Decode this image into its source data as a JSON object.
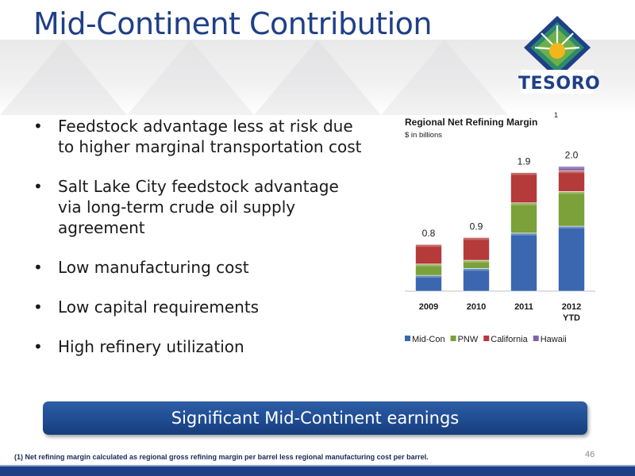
{
  "slide": {
    "title": "Mid-Continent Contribution",
    "logo_text": "TESORO",
    "page_number": "46",
    "banner": "Significant Mid-Continent earnings",
    "footnote": "(1) Net refining margin calculated as regional gross refining margin per barrel less regional manufacturing cost per barrel."
  },
  "bullets": [
    {
      "marker": "•",
      "text": "Feedstock advantage less at risk due to higher marginal transportation cost"
    },
    {
      "marker": "•",
      "text": "Salt Lake City feedstock advantage via long-term crude oil supply agreement"
    },
    {
      "marker": "•",
      "text": "Low manufacturing cost"
    },
    {
      "marker": "•",
      "text": "Low capital requirements"
    },
    {
      "marker": "•",
      "text": "High refinery utilization"
    }
  ],
  "colors": {
    "title": "#1f3f87",
    "mid_con": "#3a67b0",
    "pnw": "#7ba13a",
    "california": "#b53a3a",
    "hawaii": "#8064a8"
  },
  "chart_data": {
    "type": "bar",
    "stacked": true,
    "title": "Regional Net Refining Margin",
    "title_superscript": "1",
    "subtitle": "$ in billions",
    "categories": [
      "2009",
      "2010",
      "2011",
      "2012\nYTD"
    ],
    "totals_labels": [
      "0.8",
      "0.9",
      "1.9",
      "2.0"
    ],
    "ylim": [
      0,
      2.0
    ],
    "legend_position": "bottom",
    "grid": false,
    "series": [
      {
        "name": "Mid-Con",
        "color": "#3a67b0",
        "values": [
          0.25,
          0.36,
          0.92,
          1.03
        ]
      },
      {
        "name": "PNW",
        "color": "#7ba13a",
        "values": [
          0.18,
          0.13,
          0.48,
          0.55
        ]
      },
      {
        "name": "California",
        "color": "#b53a3a",
        "values": [
          0.31,
          0.36,
          0.48,
          0.33
        ]
      },
      {
        "name": "Hawaii",
        "color": "#8064a8",
        "values": [
          0.0,
          0.0,
          0.0,
          0.07
        ]
      }
    ]
  }
}
